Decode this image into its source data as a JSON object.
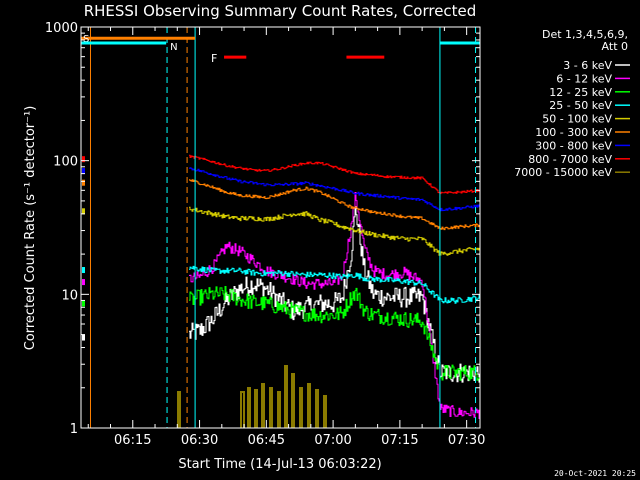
{
  "chart_data": {
    "type": "line",
    "title": "RHESSI Observing Summary Count Rates, Corrected",
    "xlabel": "Start Time (14-Jul-13 06:03:22)",
    "ylabel": "Corrected Count Rate (s⁻¹ detector⁻¹)",
    "y_scale": "log",
    "ylim": [
      1,
      1000
    ],
    "y_ticks": [
      {
        "v": 1,
        "label": "1"
      },
      {
        "v": 10,
        "label": "10"
      },
      {
        "v": 100,
        "label": "100"
      },
      {
        "v": 1000,
        "label": "1000"
      }
    ],
    "x_range_min": [
      3.37,
      93.0
    ],
    "x_ticks": [
      {
        "m": 15,
        "label": "06:15"
      },
      {
        "m": 30,
        "label": "06:30"
      },
      {
        "m": 45,
        "label": "06:45"
      },
      {
        "m": 60,
        "label": "07:00"
      },
      {
        "m": 75,
        "label": "07:15"
      },
      {
        "m": 90,
        "label": "07:30"
      }
    ],
    "legend_title": [
      "Det 1,3,4,5,6,9,",
      "Att 0"
    ],
    "legend_position": "right",
    "series": [
      {
        "name": "3 - 6 keV",
        "color": "#ffffff",
        "noise": 0.18,
        "points": [
          [
            27.5,
            5
          ],
          [
            30,
            5.3
          ],
          [
            33,
            6.5
          ],
          [
            36,
            9
          ],
          [
            39,
            11
          ],
          [
            42,
            12
          ],
          [
            45,
            11
          ],
          [
            48,
            9
          ],
          [
            51,
            7.5
          ],
          [
            54,
            8
          ],
          [
            57,
            8.5
          ],
          [
            60,
            8.5
          ],
          [
            62,
            9.5
          ],
          [
            64,
            20
          ],
          [
            65,
            45
          ],
          [
            67,
            15
          ],
          [
            69,
            10
          ],
          [
            72,
            9.5
          ],
          [
            76,
            9.5
          ],
          [
            80,
            9.5
          ],
          [
            84,
            2.6
          ],
          [
            88,
            2.6
          ],
          [
            93,
            2.6
          ]
        ]
      },
      {
        "name": "6 - 12 keV",
        "color": "#ff00ff",
        "noise": 0.1,
        "points": [
          [
            27.5,
            13
          ],
          [
            30,
            13.5
          ],
          [
            33,
            16
          ],
          [
            36,
            23
          ],
          [
            39,
            21
          ],
          [
            42,
            18
          ],
          [
            45,
            15
          ],
          [
            48,
            14
          ],
          [
            51,
            13
          ],
          [
            54,
            12
          ],
          [
            57,
            12
          ],
          [
            60,
            12
          ],
          [
            62,
            13.5
          ],
          [
            64,
            32
          ],
          [
            65,
            55
          ],
          [
            67,
            22
          ],
          [
            69,
            15
          ],
          [
            72,
            14
          ],
          [
            76,
            14.5
          ],
          [
            80,
            12.5
          ],
          [
            84,
            1.4
          ],
          [
            88,
            1.3
          ],
          [
            93,
            1.3
          ]
        ]
      },
      {
        "name": "12 - 25 keV",
        "color": "#00ff00",
        "noise": 0.14,
        "points": [
          [
            27.5,
            9
          ],
          [
            30,
            9.5
          ],
          [
            33,
            10
          ],
          [
            36,
            10
          ],
          [
            39,
            9.2
          ],
          [
            42,
            8.7
          ],
          [
            45,
            8.5
          ],
          [
            48,
            8
          ],
          [
            51,
            7.5
          ],
          [
            54,
            7.2
          ],
          [
            57,
            7
          ],
          [
            60,
            7
          ],
          [
            62,
            7.2
          ],
          [
            64,
            9.5
          ],
          [
            65,
            10.5
          ],
          [
            67,
            7.5
          ],
          [
            69,
            7
          ],
          [
            72,
            6.8
          ],
          [
            76,
            6.5
          ],
          [
            80,
            6.3
          ],
          [
            84,
            2.6
          ],
          [
            88,
            2.6
          ],
          [
            93,
            2.6
          ]
        ]
      },
      {
        "name": "25 - 50 keV",
        "color": "#00ffff",
        "noise": 0.05,
        "points": [
          [
            27.5,
            16
          ],
          [
            30,
            15.5
          ],
          [
            33,
            15
          ],
          [
            36,
            15
          ],
          [
            39,
            15
          ],
          [
            42,
            14.5
          ],
          [
            45,
            14.3
          ],
          [
            48,
            14.5
          ],
          [
            51,
            14.2
          ],
          [
            54,
            14
          ],
          [
            57,
            14
          ],
          [
            60,
            13.8
          ],
          [
            62,
            13.5
          ],
          [
            64,
            13.8
          ],
          [
            65,
            14
          ],
          [
            67,
            13.2
          ],
          [
            69,
            13
          ],
          [
            72,
            12.8
          ],
          [
            76,
            12.5
          ],
          [
            80,
            12
          ],
          [
            84,
            9
          ],
          [
            88,
            9
          ],
          [
            93,
            9.5
          ]
        ]
      },
      {
        "name": "50 - 100 keV",
        "color": "#d4cc00",
        "noise": 0.04,
        "points": [
          [
            27.5,
            44
          ],
          [
            30,
            42
          ],
          [
            33,
            40
          ],
          [
            36,
            38
          ],
          [
            39,
            37
          ],
          [
            42,
            37
          ],
          [
            45,
            36.5
          ],
          [
            48,
            38
          ],
          [
            51,
            40
          ],
          [
            54,
            40
          ],
          [
            57,
            36
          ],
          [
            60,
            34
          ],
          [
            62,
            32
          ],
          [
            64,
            31
          ],
          [
            65,
            30
          ],
          [
            67,
            29
          ],
          [
            69,
            28
          ],
          [
            72,
            27
          ],
          [
            76,
            26
          ],
          [
            80,
            26
          ],
          [
            84,
            20
          ],
          [
            88,
            21
          ],
          [
            93,
            22
          ]
        ]
      },
      {
        "name": "100 - 300 keV",
        "color": "#ff8000",
        "noise": 0.025,
        "points": [
          [
            27.5,
            72
          ],
          [
            30,
            68
          ],
          [
            33,
            63
          ],
          [
            36,
            58
          ],
          [
            39,
            55
          ],
          [
            42,
            54
          ],
          [
            45,
            53
          ],
          [
            48,
            56
          ],
          [
            51,
            60
          ],
          [
            54,
            62
          ],
          [
            57,
            58
          ],
          [
            60,
            52
          ],
          [
            62,
            48
          ],
          [
            64,
            45
          ],
          [
            65,
            44
          ],
          [
            67,
            43
          ],
          [
            69,
            41
          ],
          [
            72,
            40
          ],
          [
            76,
            38
          ],
          [
            80,
            37
          ],
          [
            84,
            31
          ],
          [
            88,
            32
          ],
          [
            93,
            33
          ]
        ]
      },
      {
        "name": "300 - 800 keV",
        "color": "#0000ff",
        "noise": 0.025,
        "points": [
          [
            27.5,
            88
          ],
          [
            30,
            84
          ],
          [
            33,
            79
          ],
          [
            36,
            74
          ],
          [
            39,
            70
          ],
          [
            42,
            68
          ],
          [
            45,
            66
          ],
          [
            48,
            66
          ],
          [
            51,
            67
          ],
          [
            54,
            68
          ],
          [
            57,
            65
          ],
          [
            60,
            62
          ],
          [
            62,
            60
          ],
          [
            64,
            58
          ],
          [
            65,
            57
          ],
          [
            67,
            56
          ],
          [
            69,
            55
          ],
          [
            72,
            54
          ],
          [
            76,
            52
          ],
          [
            80,
            51
          ],
          [
            84,
            43
          ],
          [
            88,
            44
          ],
          [
            93,
            46
          ]
        ]
      },
      {
        "name": "800 - 7000 keV",
        "color": "#ff0000",
        "noise": 0.02,
        "points": [
          [
            27.5,
            108
          ],
          [
            30,
            104
          ],
          [
            33,
            98
          ],
          [
            36,
            92
          ],
          [
            39,
            88
          ],
          [
            42,
            85
          ],
          [
            45,
            84
          ],
          [
            48,
            87
          ],
          [
            51,
            92
          ],
          [
            54,
            96
          ],
          [
            57,
            96
          ],
          [
            60,
            90
          ],
          [
            62,
            86
          ],
          [
            64,
            82
          ],
          [
            65,
            80
          ],
          [
            67,
            79
          ],
          [
            69,
            78
          ],
          [
            72,
            76
          ],
          [
            76,
            75
          ],
          [
            80,
            74
          ],
          [
            84,
            57
          ],
          [
            88,
            58
          ],
          [
            93,
            60
          ]
        ]
      },
      {
        "name": "7000 - 15000 keV",
        "color": "#8b7b00",
        "noise": 0,
        "points": []
      }
    ],
    "flag_bars": [
      {
        "label": "S",
        "color": "#ff8000",
        "start": 3.4,
        "end": 29.0,
        "y": 0.028
      },
      {
        "label": "N",
        "color": "#00ffff",
        "start": 3.4,
        "end": 22.5,
        "y": 0.04
      },
      {
        "label": "",
        "color": "#00ffff",
        "start": 84.0,
        "end": 93.0,
        "y": 0.04
      }
    ],
    "flare_marks": {
      "label": "F",
      "color": "#ff0000",
      "segments": [
        [
          35.5,
          40.5
        ],
        [
          63.0,
          71.5
        ]
      ]
    },
    "vertical_markers": [
      {
        "m": 5.5,
        "color": "#ff8000",
        "style": "solid"
      },
      {
        "m": 22.7,
        "color": "#00ffff",
        "style": "dashed"
      },
      {
        "m": 27.2,
        "color": "#ff8000",
        "style": "dashed"
      },
      {
        "m": 29.0,
        "color": "#00ffff",
        "style": "solid"
      },
      {
        "m": 84.0,
        "color": "#00ffff",
        "style": "solid"
      },
      {
        "m": 92.0,
        "color": "#00ffff",
        "style": "dashed"
      }
    ],
    "footer_date": "20-Oct-2021 20:25"
  }
}
